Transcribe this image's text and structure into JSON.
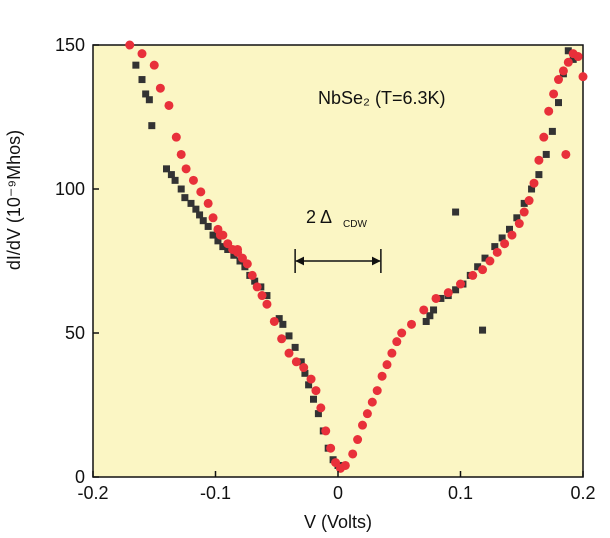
{
  "chart_data": {
    "type": "scatter",
    "title": "",
    "xlabel": "V (Volts)",
    "ylabel": "dI/dV (10⁻⁹Mhos)",
    "xlim": [
      -0.2,
      0.2
    ],
    "ylim": [
      0,
      150
    ],
    "x_ticks": [
      {
        "value": -0.2,
        "label": "-0.2"
      },
      {
        "value": -0.1,
        "label": "-0.1"
      },
      {
        "value": 0,
        "label": "0"
      },
      {
        "value": 0.1,
        "label": "0.1"
      },
      {
        "value": 0.2,
        "label": "0.2"
      }
    ],
    "y_ticks": [
      {
        "value": 0,
        "label": "0"
      },
      {
        "value": 50,
        "label": "50"
      },
      {
        "value": 100,
        "label": "100"
      },
      {
        "value": 150,
        "label": "150"
      }
    ],
    "background_color": "#fbf6c4",
    "grid": false,
    "annotations": {
      "material_label": "NbSe₂ (T=6.3K)",
      "gap_label": "2 Δ",
      "gap_subscript": "CDW",
      "gap_arrow_range": [
        -0.035,
        0.035
      ],
      "gap_arrow_y": 75
    },
    "series": [
      {
        "marker": "square",
        "color": "#333333",
        "points": [
          [
            -0.165,
            143
          ],
          [
            -0.16,
            138
          ],
          [
            -0.157,
            133
          ],
          [
            -0.154,
            131
          ],
          [
            -0.152,
            122
          ],
          [
            -0.14,
            107
          ],
          [
            -0.136,
            105
          ],
          [
            -0.133,
            103
          ],
          [
            -0.128,
            100
          ],
          [
            -0.125,
            97
          ],
          [
            -0.12,
            95
          ],
          [
            -0.116,
            93
          ],
          [
            -0.113,
            91
          ],
          [
            -0.11,
            89
          ],
          [
            -0.106,
            87
          ],
          [
            -0.102,
            84
          ],
          [
            -0.098,
            82
          ],
          [
            -0.094,
            80
          ],
          [
            -0.09,
            79
          ],
          [
            -0.085,
            77
          ],
          [
            -0.08,
            75
          ],
          [
            -0.076,
            73
          ],
          [
            -0.072,
            70
          ],
          [
            -0.068,
            68
          ],
          [
            -0.063,
            66
          ],
          [
            -0.058,
            63
          ],
          [
            -0.048,
            55
          ],
          [
            -0.045,
            53
          ],
          [
            -0.04,
            49
          ],
          [
            -0.035,
            45
          ],
          [
            -0.03,
            40
          ],
          [
            -0.027,
            36
          ],
          [
            -0.024,
            32
          ],
          [
            -0.02,
            27
          ],
          [
            -0.016,
            22
          ],
          [
            -0.012,
            16
          ],
          [
            -0.008,
            10
          ],
          [
            -0.004,
            6
          ],
          [
            0.0,
            4
          ],
          [
            0.004,
            4
          ],
          [
            0.072,
            54
          ],
          [
            0.078,
            58
          ],
          [
            0.084,
            62
          ],
          [
            0.09,
            63
          ],
          [
            0.096,
            65
          ],
          [
            0.102,
            67
          ],
          [
            0.108,
            70
          ],
          [
            0.114,
            73
          ],
          [
            0.12,
            76
          ],
          [
            0.128,
            80
          ],
          [
            0.134,
            83
          ],
          [
            0.14,
            86
          ],
          [
            0.146,
            90
          ],
          [
            0.152,
            95
          ],
          [
            0.158,
            100
          ],
          [
            0.164,
            105
          ],
          [
            0.17,
            112
          ],
          [
            0.175,
            120
          ],
          [
            0.18,
            130
          ],
          [
            0.184,
            140
          ],
          [
            0.188,
            148
          ],
          [
            0.192,
            145
          ],
          [
            0.118,
            51
          ],
          [
            0.096,
            92
          ],
          [
            0.075,
            56
          ]
        ]
      },
      {
        "marker": "circle",
        "color": "#e8303a",
        "points": [
          [
            -0.17,
            150
          ],
          [
            -0.16,
            147
          ],
          [
            -0.15,
            143
          ],
          [
            -0.145,
            135
          ],
          [
            -0.138,
            129
          ],
          [
            -0.132,
            118
          ],
          [
            -0.128,
            112
          ],
          [
            -0.124,
            107
          ],
          [
            -0.118,
            103
          ],
          [
            -0.112,
            99
          ],
          [
            -0.106,
            95
          ],
          [
            -0.102,
            90
          ],
          [
            -0.098,
            86
          ],
          [
            -0.094,
            84
          ],
          [
            -0.09,
            81
          ],
          [
            -0.086,
            79
          ],
          [
            -0.082,
            78
          ],
          [
            -0.078,
            76
          ],
          [
            -0.074,
            74
          ],
          [
            -0.07,
            70
          ],
          [
            -0.066,
            66
          ],
          [
            -0.062,
            63
          ],
          [
            -0.058,
            60
          ],
          [
            -0.052,
            54
          ],
          [
            -0.046,
            48
          ],
          [
            -0.04,
            43
          ],
          [
            -0.034,
            40
          ],
          [
            -0.028,
            38
          ],
          [
            -0.022,
            34
          ],
          [
            -0.018,
            30
          ],
          [
            -0.014,
            24
          ],
          [
            -0.01,
            16
          ],
          [
            -0.006,
            10
          ],
          [
            -0.002,
            5
          ],
          [
            0.002,
            3
          ],
          [
            0.006,
            4
          ],
          [
            0.012,
            8
          ],
          [
            0.016,
            13
          ],
          [
            0.02,
            18
          ],
          [
            0.024,
            22
          ],
          [
            0.028,
            26
          ],
          [
            0.032,
            30
          ],
          [
            0.036,
            35
          ],
          [
            0.04,
            39
          ],
          [
            0.044,
            43
          ],
          [
            0.048,
            47
          ],
          [
            0.052,
            50
          ],
          [
            0.06,
            53
          ],
          [
            0.07,
            58
          ],
          [
            0.08,
            62
          ],
          [
            0.09,
            64
          ],
          [
            0.1,
            67
          ],
          [
            0.11,
            70
          ],
          [
            0.118,
            72
          ],
          [
            0.124,
            75
          ],
          [
            0.13,
            78
          ],
          [
            0.136,
            81
          ],
          [
            0.142,
            84
          ],
          [
            0.148,
            88
          ],
          [
            0.152,
            92
          ],
          [
            0.156,
            96
          ],
          [
            0.16,
            102
          ],
          [
            0.164,
            110
          ],
          [
            0.168,
            118
          ],
          [
            0.172,
            127
          ],
          [
            0.176,
            133
          ],
          [
            0.18,
            138
          ],
          [
            0.184,
            141
          ],
          [
            0.188,
            144
          ],
          [
            0.192,
            147
          ],
          [
            0.196,
            146
          ],
          [
            0.2,
            139
          ],
          [
            -0.096,
            84
          ],
          [
            -0.082,
            79
          ],
          [
            0.186,
            112
          ]
        ]
      }
    ]
  }
}
